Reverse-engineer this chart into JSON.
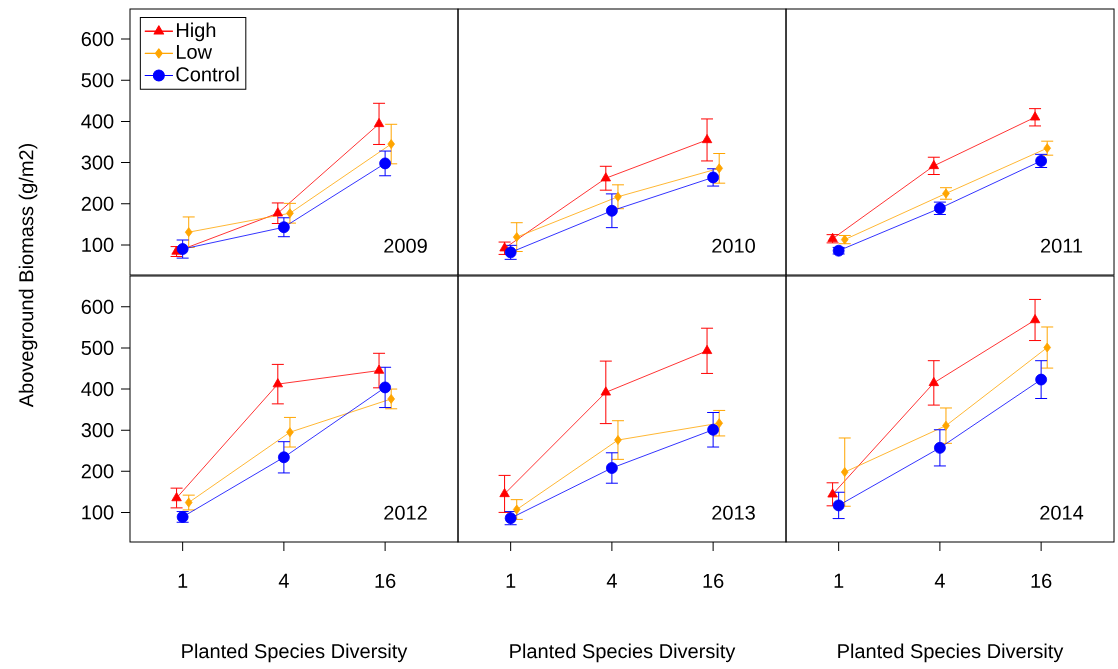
{
  "chart_data": [
    {
      "type": "line",
      "annotations": [
        "2009"
      ],
      "ylabel": "Aboveground Biomass (g/m2)",
      "categories": [
        "1",
        "4",
        "16"
      ],
      "ylim": [
        27,
        673
      ],
      "yticks": [
        100,
        200,
        300,
        400,
        500,
        600
      ],
      "tick_labels": "y",
      "legend": "top left",
      "grid": false,
      "series": [
        {
          "name": "High",
          "color": "#ff0000",
          "marker": "triangle",
          "values": [
            84,
            177,
            394
          ],
          "errors": [
            12,
            25,
            50
          ]
        },
        {
          "name": "Low",
          "color": "#ffa500",
          "marker": "diamond",
          "values": [
            131,
            177,
            345
          ],
          "errors": [
            37,
            24,
            48
          ]
        },
        {
          "name": "Control",
          "color": "#0000ff",
          "marker": "circle",
          "values": [
            90,
            143,
            298
          ],
          "errors": [
            22,
            23,
            30
          ]
        }
      ]
    },
    {
      "type": "line",
      "annotations": [
        "2010"
      ],
      "categories": [
        "1",
        "4",
        "16"
      ],
      "ylim": [
        27,
        673
      ],
      "tick_labels": false,
      "grid": false,
      "series": [
        {
          "color": "#ff0000",
          "marker": "triangle",
          "values": [
            92,
            262,
            355
          ],
          "errors": [
            15,
            29,
            51
          ]
        },
        {
          "color": "#ffa500",
          "marker": "diamond",
          "values": [
            119,
            217,
            286
          ],
          "errors": [
            35,
            29,
            36
          ]
        },
        {
          "color": "#0000ff",
          "marker": "circle",
          "values": [
            82,
            183,
            264
          ],
          "errors": [
            17,
            41,
            21
          ]
        }
      ]
    },
    {
      "type": "line",
      "annotations": [
        "2011"
      ],
      "categories": [
        "1",
        "4",
        "16"
      ],
      "ylim": [
        27,
        673
      ],
      "tick_labels": false,
      "grid": false,
      "series": [
        {
          "color": "#ff0000",
          "marker": "triangle",
          "values": [
            115,
            292,
            410
          ],
          "errors": [
            10,
            21,
            21
          ]
        },
        {
          "color": "#ffa500",
          "marker": "diamond",
          "values": [
            113,
            225,
            335
          ],
          "errors": [
            10,
            14,
            17
          ]
        },
        {
          "color": "#0000ff",
          "marker": "circle",
          "values": [
            86,
            189,
            304
          ],
          "errors": [
            8,
            15,
            16
          ]
        }
      ]
    },
    {
      "type": "line",
      "annotations": [
        "2012"
      ],
      "xlabel": "Planted Species Diversity",
      "categories": [
        "1",
        "4",
        "16"
      ],
      "ylim": [
        28,
        675
      ],
      "yticks": [
        100,
        200,
        300,
        400,
        500,
        600
      ],
      "grid": false,
      "series": [
        {
          "color": "#ff0000",
          "marker": "triangle",
          "values": [
            135,
            412,
            445
          ],
          "errors": [
            24,
            48,
            42
          ]
        },
        {
          "color": "#ffa500",
          "marker": "diamond",
          "values": [
            124,
            295,
            376
          ],
          "errors": [
            18,
            36,
            24
          ]
        },
        {
          "color": "#0000ff",
          "marker": "circle",
          "values": [
            89,
            234,
            404
          ],
          "errors": [
            13,
            38,
            49
          ]
        }
      ]
    },
    {
      "type": "line",
      "annotations": [
        "2013"
      ],
      "xlabel": "Planted Species Diversity",
      "categories": [
        "1",
        "4",
        "16"
      ],
      "ylim": [
        28,
        675
      ],
      "tick_labels": "x",
      "grid": false,
      "series": [
        {
          "color": "#ff0000",
          "marker": "triangle",
          "values": [
            145,
            392,
            493
          ],
          "errors": [
            45,
            76,
            55
          ]
        },
        {
          "color": "#ffa500",
          "marker": "diamond",
          "values": [
            107,
            276,
            317
          ],
          "errors": [
            24,
            47,
            31
          ]
        },
        {
          "color": "#0000ff",
          "marker": "circle",
          "values": [
            86,
            208,
            301
          ],
          "errors": [
            16,
            37,
            42
          ]
        }
      ]
    },
    {
      "type": "line",
      "annotations": [
        "2014"
      ],
      "xlabel": "Planted Species Diversity",
      "categories": [
        "1",
        "4",
        "16"
      ],
      "ylim": [
        28,
        675
      ],
      "tick_labels": "x",
      "grid": false,
      "series": [
        {
          "color": "#ff0000",
          "marker": "triangle",
          "values": [
            144,
            415,
            568
          ],
          "errors": [
            28,
            54,
            50
          ]
        },
        {
          "color": "#ffa500",
          "marker": "diamond",
          "values": [
            198,
            311,
            501
          ],
          "errors": [
            83,
            43,
            50
          ]
        },
        {
          "color": "#0000ff",
          "marker": "circle",
          "values": [
            117,
            257,
            423
          ],
          "errors": [
            32,
            44,
            46
          ]
        }
      ]
    }
  ]
}
